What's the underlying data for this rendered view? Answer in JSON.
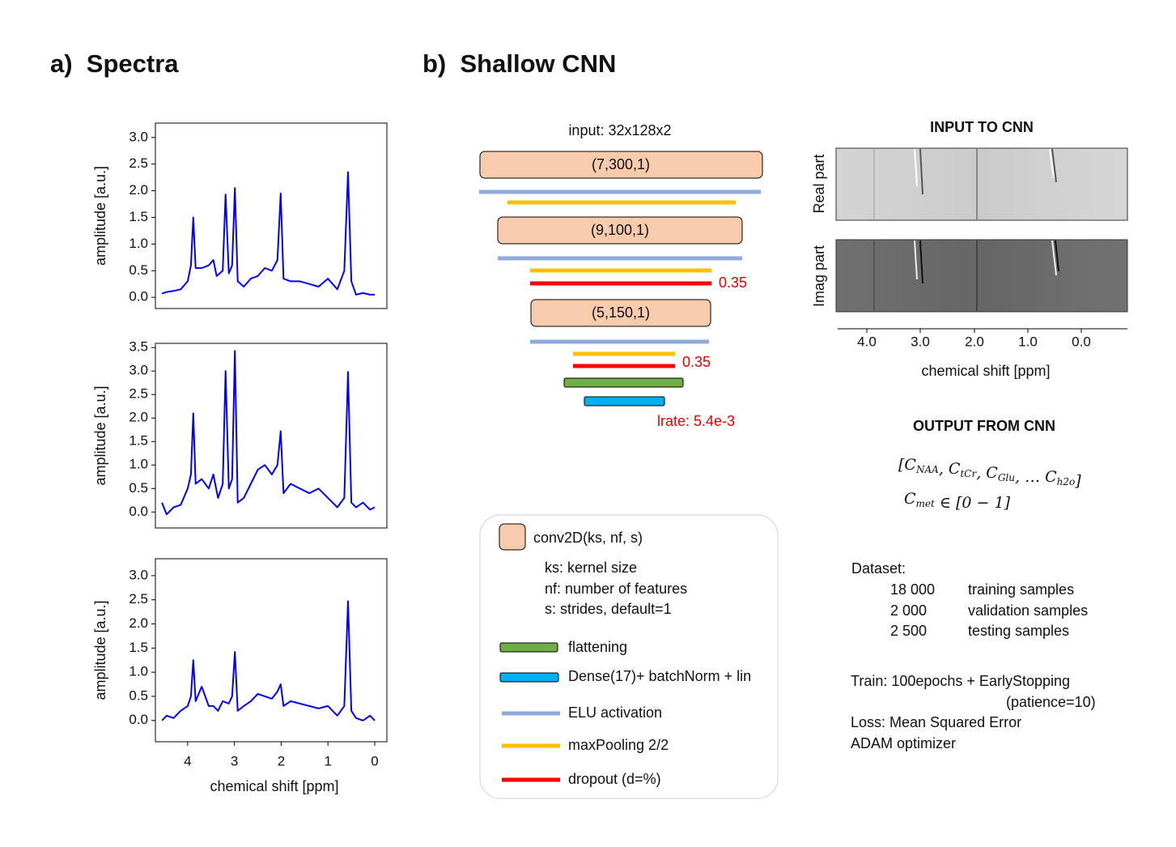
{
  "header": {
    "panel_a": "a)  Spectra",
    "panel_b": "b)  Shallow CNN"
  },
  "chart_data": [
    {
      "type": "line",
      "color": "#0000ff",
      "ylabel": "amplitude [a.u.]",
      "xlim": [
        4.69,
        -0.26
      ],
      "ylim": [
        -0.21,
        3.27
      ],
      "yticks": [
        {
          "value": 0,
          "label": "0.0"
        },
        {
          "value": 0.5,
          "label": "0.5"
        },
        {
          "value": 1,
          "label": "1.0"
        },
        {
          "value": 1.5,
          "label": "1.5"
        },
        {
          "value": 2,
          "label": "2.0"
        },
        {
          "value": 2.5,
          "label": "2.5"
        },
        {
          "value": 3,
          "label": "3.0"
        }
      ],
      "x": [
        4.55,
        4.45,
        4.3,
        4.15,
        4.0,
        3.93,
        3.88,
        3.83,
        3.7,
        3.55,
        3.45,
        3.38,
        3.25,
        3.19,
        3.12,
        3.05,
        2.99,
        2.93,
        2.8,
        2.65,
        2.5,
        2.35,
        2.2,
        2.08,
        2.01,
        1.95,
        1.8,
        1.6,
        1.4,
        1.2,
        1.0,
        0.8,
        0.65,
        0.57,
        0.5,
        0.4,
        0.25,
        0.1,
        0.0
      ],
      "values": [
        0.07,
        0.1,
        0.12,
        0.15,
        0.3,
        0.6,
        1.5,
        0.55,
        0.55,
        0.6,
        0.7,
        0.4,
        0.5,
        1.93,
        0.45,
        0.6,
        2.05,
        0.3,
        0.2,
        0.35,
        0.4,
        0.55,
        0.5,
        0.7,
        1.95,
        0.35,
        0.3,
        0.3,
        0.25,
        0.2,
        0.35,
        0.15,
        0.5,
        2.35,
        0.3,
        0.05,
        0.08,
        0.05,
        0.05
      ]
    },
    {
      "type": "line",
      "color": "#0000ff",
      "ylabel": "amplitude [a.u.]",
      "xlim": [
        4.69,
        -0.26
      ],
      "ylim": [
        -0.34,
        3.59
      ],
      "yticks": [
        {
          "value": 0,
          "label": "0.0"
        },
        {
          "value": 0.5,
          "label": "0.5"
        },
        {
          "value": 1,
          "label": "1.0"
        },
        {
          "value": 1.5,
          "label": "1.5"
        },
        {
          "value": 2,
          "label": "2.0"
        },
        {
          "value": 2.5,
          "label": "2.5"
        },
        {
          "value": 3,
          "label": "3.0"
        },
        {
          "value": 3.5,
          "label": "3.5"
        }
      ],
      "x": [
        4.55,
        4.45,
        4.3,
        4.15,
        4.0,
        3.93,
        3.88,
        3.83,
        3.7,
        3.55,
        3.45,
        3.35,
        3.25,
        3.19,
        3.12,
        3.05,
        2.99,
        2.93,
        2.8,
        2.65,
        2.5,
        2.35,
        2.2,
        2.08,
        2.01,
        1.95,
        1.8,
        1.6,
        1.4,
        1.2,
        1.0,
        0.8,
        0.65,
        0.57,
        0.5,
        0.4,
        0.25,
        0.1,
        0.0
      ],
      "values": [
        0.2,
        -0.05,
        0.1,
        0.15,
        0.5,
        0.8,
        2.1,
        0.6,
        0.7,
        0.5,
        0.8,
        0.3,
        0.6,
        3.0,
        0.5,
        0.7,
        3.43,
        0.2,
        0.3,
        0.6,
        0.9,
        1.0,
        0.8,
        1.0,
        1.72,
        0.4,
        0.6,
        0.5,
        0.4,
        0.5,
        0.3,
        0.1,
        0.3,
        2.98,
        0.2,
        0.1,
        0.2,
        0.05,
        0.1
      ]
    },
    {
      "type": "line",
      "color": "#0000ff",
      "ylabel": "amplitude [a.u.]",
      "xlabel": "chemical shift [ppm]",
      "xlim": [
        4.69,
        -0.26
      ],
      "ylim": [
        -0.44,
        3.35
      ],
      "xticks": [
        4,
        3,
        2,
        1,
        0
      ],
      "yticks": [
        {
          "value": 0,
          "label": "0.0"
        },
        {
          "value": 0.5,
          "label": "0.5"
        },
        {
          "value": 1,
          "label": "1.0"
        },
        {
          "value": 1.5,
          "label": "1.5"
        },
        {
          "value": 2,
          "label": "2.0"
        },
        {
          "value": 2.5,
          "label": "2.5"
        },
        {
          "value": 3,
          "label": "3.0"
        }
      ],
      "x": [
        4.55,
        4.45,
        4.3,
        4.15,
        4.0,
        3.93,
        3.88,
        3.83,
        3.7,
        3.55,
        3.45,
        3.35,
        3.25,
        3.12,
        3.05,
        2.99,
        2.93,
        2.8,
        2.65,
        2.5,
        2.35,
        2.2,
        2.08,
        2.01,
        1.95,
        1.8,
        1.6,
        1.4,
        1.2,
        1.0,
        0.8,
        0.65,
        0.57,
        0.5,
        0.4,
        0.25,
        0.1,
        0.0
      ],
      "values": [
        0.0,
        0.1,
        0.05,
        0.2,
        0.3,
        0.5,
        1.25,
        0.4,
        0.7,
        0.3,
        0.3,
        0.2,
        0.4,
        0.35,
        0.5,
        1.42,
        0.2,
        0.3,
        0.4,
        0.55,
        0.5,
        0.45,
        0.6,
        0.75,
        0.3,
        0.4,
        0.35,
        0.3,
        0.25,
        0.3,
        0.1,
        0.3,
        2.47,
        0.2,
        0.05,
        0.0,
        0.1,
        0.0
      ]
    }
  ],
  "cnn": {
    "input": "input: 32x128x2",
    "conv1": "(7,300,1)",
    "conv2": "(9,100,1)",
    "dropout1": "0.35",
    "conv3": "(5,150,1)",
    "dropout2": "0.35",
    "lrate": "lrate: 5.4e-3"
  },
  "legend": {
    "conv": "conv2D(ks, nf, s)",
    "conv_notes": [
      "ks: kernel size",
      "nf: number of features",
      "s: strides, default=1"
    ],
    "flattening": "flattening",
    "dense": "Dense(17)+ batchNorm + lin",
    "elu": "ELU activation",
    "maxpool": "maxPooling 2/2",
    "dropout": "dropout (d=%)"
  },
  "input_image": {
    "title": "INPUT TO CNN",
    "rows": [
      "Real part",
      "Imag part"
    ],
    "xticks": [
      "4.0",
      "3.0",
      "2.0",
      "1.0",
      "0.0"
    ],
    "xlabel": "chemical shift [ppm]"
  },
  "output": {
    "title": "OUTPUT FROM CNN",
    "formula1": [
      {
        "t": "["
      },
      {
        "t": "C",
        "sub": "NAA"
      },
      {
        "t": ", "
      },
      {
        "t": "C",
        "sub": "tCr"
      },
      {
        "t": ", "
      },
      {
        "t": "C",
        "sub": "Glu"
      },
      {
        "t": ", … "
      },
      {
        "t": "C",
        "sub": "h2o"
      },
      {
        "t": "]"
      }
    ],
    "formula2": [
      {
        "t": "C",
        "sub": "met"
      },
      {
        "t": " ∈ [0 − 1]"
      }
    ]
  },
  "dataset": {
    "title": "Dataset:",
    "rows": [
      [
        "18 000",
        "training samples"
      ],
      [
        "2 000",
        "validation samples"
      ],
      [
        "2 500",
        "testing samples"
      ]
    ]
  },
  "training": [
    "Train: 100epochs + EarlyStopping",
    "(patience=10)",
    "Loss: Mean Squared Error",
    "ADAM optimizer"
  ]
}
